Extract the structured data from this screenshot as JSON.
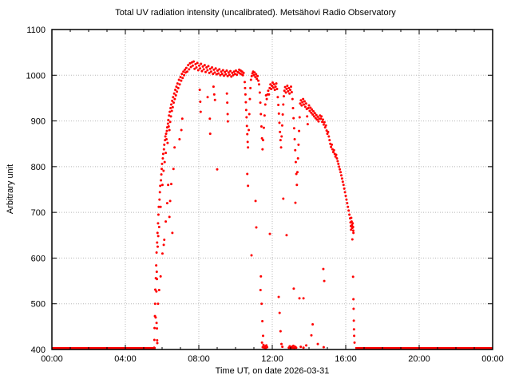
{
  "title": "Total UV radiation intensity (uncalibrated). Metsähovi Radio Observatory",
  "axes": {
    "x_label": "Time UT, on date 2026-03-31",
    "y_label": "Arbitrary unit"
  },
  "chart_data": {
    "type": "scatter",
    "title": "Total UV radiation intensity (uncalibrated). Metsähovi Radio Observatory",
    "xlabel": "Time UT, on date 2026-03-31",
    "ylabel": "Arbitrary unit",
    "x_unit": "hours UT",
    "xlim": [
      0,
      24
    ],
    "ylim": [
      400,
      1100
    ],
    "x_major_ticks_hours": [
      0,
      4,
      8,
      12,
      16,
      20,
      24
    ],
    "x_tick_labels": [
      "00:00",
      "04:00",
      "08:00",
      "12:00",
      "16:00",
      "20:00",
      "00:00"
    ],
    "x_minor_tick_step_hours": 1,
    "y_ticks": [
      400,
      500,
      600,
      700,
      800,
      900,
      1000,
      1100
    ],
    "grid": "dotted at major ticks",
    "legend": "none",
    "point_color": "#ff0000",
    "grid_color": "#b8b8b8",
    "border_color": "#000000",
    "baseline_value": 400,
    "baseline_segments_hours": [
      [
        0.0,
        5.65
      ],
      [
        16.52,
        24.0
      ]
    ],
    "points": [
      [
        5.57,
        404
      ],
      [
        5.58,
        421
      ],
      [
        5.59,
        447
      ],
      [
        5.61,
        473
      ],
      [
        5.62,
        500
      ],
      [
        5.63,
        531
      ],
      [
        5.65,
        470
      ],
      [
        5.66,
        556
      ],
      [
        5.68,
        584
      ],
      [
        5.69,
        527
      ],
      [
        5.7,
        612
      ],
      [
        5.71,
        570
      ],
      [
        5.72,
        554
      ],
      [
        5.73,
        634
      ],
      [
        5.75,
        655
      ],
      [
        5.76,
        625
      ],
      [
        5.78,
        676
      ],
      [
        5.79,
        648
      ],
      [
        5.8,
        695
      ],
      [
        5.82,
        712
      ],
      [
        5.84,
        668
      ],
      [
        5.86,
        728
      ],
      [
        5.88,
        744
      ],
      [
        5.9,
        758
      ],
      [
        5.92,
        712
      ],
      [
        5.94,
        770
      ],
      [
        5.96,
        783
      ],
      [
        5.98,
        795
      ],
      [
        6.0,
        806
      ],
      [
        6.02,
        760
      ],
      [
        6.04,
        818
      ],
      [
        6.06,
        828
      ],
      [
        6.08,
        791
      ],
      [
        6.1,
        838
      ],
      [
        6.12,
        848
      ],
      [
        6.14,
        810
      ],
      [
        6.16,
        858
      ],
      [
        6.18,
        866
      ],
      [
        6.2,
        830
      ],
      [
        6.22,
        872
      ],
      [
        6.24,
        860
      ],
      [
        6.26,
        878
      ],
      [
        6.28,
        886
      ],
      [
        6.3,
        852
      ],
      [
        6.32,
        894
      ],
      [
        5.7,
        458
      ],
      [
        5.72,
        446
      ],
      [
        5.73,
        420
      ],
      [
        5.74,
        414
      ],
      [
        5.78,
        500
      ],
      [
        5.84,
        530
      ],
      [
        5.92,
        560
      ],
      [
        6.02,
        610
      ],
      [
        6.09,
        629
      ],
      [
        6.12,
        640
      ],
      [
        6.2,
        680
      ],
      [
        6.28,
        720
      ],
      [
        6.33,
        760
      ],
      [
        6.34,
        902
      ],
      [
        6.36,
        888
      ],
      [
        6.38,
        912
      ],
      [
        6.4,
        880
      ],
      [
        6.42,
        920
      ],
      [
        6.44,
        898
      ],
      [
        6.46,
        928
      ],
      [
        6.48,
        910
      ],
      [
        6.5,
        936
      ],
      [
        6.53,
        922
      ],
      [
        6.55,
        944
      ],
      [
        6.58,
        930
      ],
      [
        6.6,
        952
      ],
      [
        6.63,
        940
      ],
      [
        6.66,
        960
      ],
      [
        6.69,
        948
      ],
      [
        6.72,
        968
      ],
      [
        6.75,
        956
      ],
      [
        6.78,
        975
      ],
      [
        6.81,
        964
      ],
      [
        6.84,
        982
      ],
      [
        6.88,
        972
      ],
      [
        6.92,
        990
      ],
      [
        6.96,
        980
      ],
      [
        7.0,
        996
      ],
      [
        7.04,
        988
      ],
      [
        7.08,
        1003
      ],
      [
        7.12,
        994
      ],
      [
        7.16,
        1008
      ],
      [
        7.2,
        1000
      ],
      [
        7.24,
        1012
      ],
      [
        7.28,
        1006
      ],
      [
        6.4,
        690
      ],
      [
        6.44,
        725
      ],
      [
        6.5,
        762
      ],
      [
        6.56,
        655
      ],
      [
        6.62,
        795
      ],
      [
        6.68,
        842
      ],
      [
        6.95,
        860
      ],
      [
        7.05,
        880
      ],
      [
        7.1,
        905
      ],
      [
        7.32,
        1016
      ],
      [
        7.37,
        1008
      ],
      [
        7.42,
        1022
      ],
      [
        7.47,
        1013
      ],
      [
        7.52,
        1026
      ],
      [
        7.57,
        1018
      ],
      [
        7.62,
        1028
      ],
      [
        7.67,
        1021
      ],
      [
        7.72,
        1030
      ],
      [
        7.77,
        1014
      ],
      [
        7.82,
        1024
      ],
      [
        7.87,
        1017
      ],
      [
        7.92,
        1027
      ],
      [
        7.97,
        1011
      ],
      [
        8.02,
        1021
      ],
      [
        8.07,
        1015
      ],
      [
        8.12,
        1025
      ],
      [
        8.17,
        1009
      ],
      [
        8.22,
        1019
      ],
      [
        8.27,
        1013
      ],
      [
        8.32,
        1022
      ],
      [
        8.37,
        1007
      ],
      [
        8.42,
        1017
      ],
      [
        8.47,
        1011
      ],
      [
        8.52,
        1020
      ],
      [
        8.57,
        1005
      ],
      [
        8.62,
        1014
      ],
      [
        8.67,
        1008
      ],
      [
        8.72,
        1017
      ],
      [
        8.77,
        1003
      ],
      [
        8.82,
        1012
      ],
      [
        8.87,
        1006
      ],
      [
        8.92,
        1015
      ],
      [
        8.97,
        1002
      ],
      [
        9.02,
        1010
      ],
      [
        9.07,
        1004
      ],
      [
        9.12,
        1013
      ],
      [
        9.17,
        1000
      ],
      [
        9.22,
        1008
      ],
      [
        9.27,
        1003
      ],
      [
        9.32,
        1011
      ],
      [
        9.37,
        999
      ],
      [
        9.42,
        1007
      ],
      [
        9.47,
        1002
      ],
      [
        9.52,
        1010
      ],
      [
        9.57,
        998
      ],
      [
        9.62,
        1006
      ],
      [
        9.67,
        1001
      ],
      [
        9.72,
        1009
      ],
      [
        9.77,
        997
      ],
      [
        9.82,
        1005
      ],
      [
        9.87,
        1000
      ],
      [
        9.92,
        1008
      ],
      [
        9.97,
        1003
      ],
      [
        10.02,
        1010
      ],
      [
        10.07,
        1001
      ],
      [
        10.12,
        1007
      ],
      [
        8.05,
        968
      ],
      [
        8.08,
        942
      ],
      [
        8.1,
        920
      ],
      [
        8.48,
        952
      ],
      [
        8.6,
        905
      ],
      [
        8.62,
        872
      ],
      [
        8.8,
        975
      ],
      [
        8.84,
        958
      ],
      [
        8.88,
        946
      ],
      [
        9.0,
        794
      ],
      [
        9.53,
        960
      ],
      [
        9.55,
        940
      ],
      [
        9.57,
        915
      ],
      [
        9.58,
        899
      ],
      [
        10.16,
        1006
      ],
      [
        10.2,
        1012
      ],
      [
        10.24,
        1004
      ],
      [
        10.28,
        1010
      ],
      [
        10.32,
        1002
      ],
      [
        10.36,
        1008
      ],
      [
        10.4,
        1000
      ],
      [
        10.44,
        1005
      ],
      [
        10.5,
        985
      ],
      [
        10.52,
        972
      ],
      [
        10.54,
        958
      ],
      [
        10.56,
        941
      ],
      [
        10.58,
        924
      ],
      [
        10.6,
        908
      ],
      [
        10.62,
        889
      ],
      [
        10.64,
        871
      ],
      [
        10.66,
        854
      ],
      [
        10.68,
        842
      ],
      [
        10.72,
        880
      ],
      [
        10.75,
        915
      ],
      [
        10.78,
        948
      ],
      [
        10.81,
        972
      ],
      [
        10.84,
        990
      ],
      [
        10.88,
        998
      ],
      [
        10.92,
        1004
      ],
      [
        10.96,
        1008
      ],
      [
        11.0,
        1000
      ],
      [
        11.04,
        1006
      ],
      [
        11.08,
        996
      ],
      [
        11.12,
        1002
      ],
      [
        11.16,
        992
      ],
      [
        11.2,
        998
      ],
      [
        11.24,
        988
      ],
      [
        11.28,
        980
      ],
      [
        10.64,
        784
      ],
      [
        10.68,
        758
      ],
      [
        10.87,
        606
      ],
      [
        11.09,
        725
      ],
      [
        11.13,
        667
      ],
      [
        11.32,
        962
      ],
      [
        11.35,
        940
      ],
      [
        11.38,
        915
      ],
      [
        11.41,
        888
      ],
      [
        11.44,
        862
      ],
      [
        11.47,
        838
      ],
      [
        11.5,
        858
      ],
      [
        11.54,
        885
      ],
      [
        11.58,
        912
      ],
      [
        11.62,
        936
      ],
      [
        11.66,
        956
      ],
      [
        11.7,
        948
      ],
      [
        11.74,
        958
      ],
      [
        11.78,
        966
      ],
      [
        11.82,
        958
      ],
      [
        11.36,
        530
      ],
      [
        11.38,
        560
      ],
      [
        11.42,
        500
      ],
      [
        11.46,
        462
      ],
      [
        11.5,
        430
      ],
      [
        11.44,
        415
      ],
      [
        11.48,
        405
      ],
      [
        11.52,
        410
      ],
      [
        11.56,
        404
      ],
      [
        11.6,
        407
      ],
      [
        11.64,
        403
      ],
      [
        11.68,
        409
      ],
      [
        11.72,
        405
      ],
      [
        11.87,
        653
      ],
      [
        11.86,
        972
      ],
      [
        11.9,
        980
      ],
      [
        11.94,
        970
      ],
      [
        11.98,
        977
      ],
      [
        12.02,
        984
      ],
      [
        12.06,
        973
      ],
      [
        12.1,
        980
      ],
      [
        12.14,
        968
      ],
      [
        12.18,
        975
      ],
      [
        12.22,
        982
      ],
      [
        12.26,
        970
      ],
      [
        12.3,
        952
      ],
      [
        12.33,
        935
      ],
      [
        12.36,
        916
      ],
      [
        12.39,
        896
      ],
      [
        12.42,
        876
      ],
      [
        12.45,
        858
      ],
      [
        12.48,
        842
      ],
      [
        12.51,
        866
      ],
      [
        12.54,
        890
      ],
      [
        12.57,
        914
      ],
      [
        12.6,
        936
      ],
      [
        12.63,
        954
      ],
      [
        12.35,
        515
      ],
      [
        12.4,
        480
      ],
      [
        12.45,
        440
      ],
      [
        12.5,
        412
      ],
      [
        12.55,
        406
      ],
      [
        12.6,
        730
      ],
      [
        12.78,
        650
      ],
      [
        12.66,
        966
      ],
      [
        12.7,
        974
      ],
      [
        12.74,
        962
      ],
      [
        12.78,
        970
      ],
      [
        12.82,
        977
      ],
      [
        12.86,
        965
      ],
      [
        12.9,
        972
      ],
      [
        12.94,
        960
      ],
      [
        12.98,
        968
      ],
      [
        13.02,
        975
      ],
      [
        13.06,
        963
      ],
      [
        13.1,
        948
      ],
      [
        13.13,
        928
      ],
      [
        13.16,
        906
      ],
      [
        13.19,
        884
      ],
      [
        13.22,
        860
      ],
      [
        13.25,
        836
      ],
      [
        13.28,
        810
      ],
      [
        13.31,
        784
      ],
      [
        13.34,
        760
      ],
      [
        13.37,
        788
      ],
      [
        13.4,
        818
      ],
      [
        13.43,
        848
      ],
      [
        13.46,
        878
      ],
      [
        13.49,
        908
      ],
      [
        13.17,
        533
      ],
      [
        13.26,
        721
      ],
      [
        13.48,
        512
      ],
      [
        13.7,
        512
      ],
      [
        12.9,
        404
      ],
      [
        12.95,
        407
      ],
      [
        13.0,
        403
      ],
      [
        13.05,
        406
      ],
      [
        13.1,
        404
      ],
      [
        13.15,
        408
      ],
      [
        13.2,
        403
      ],
      [
        13.25,
        406
      ],
      [
        13.3,
        404
      ],
      [
        13.55,
        406
      ],
      [
        13.7,
        404
      ],
      [
        13.85,
        409
      ],
      [
        14.13,
        431
      ],
      [
        14.2,
        455
      ],
      [
        14.48,
        412
      ],
      [
        14.8,
        405
      ],
      [
        13.52,
        938
      ],
      [
        13.56,
        945
      ],
      [
        13.6,
        934
      ],
      [
        13.64,
        941
      ],
      [
        13.68,
        948
      ],
      [
        13.72,
        936
      ],
      [
        13.76,
        943
      ],
      [
        13.8,
        931
      ],
      [
        13.84,
        938
      ],
      [
        13.88,
        926
      ],
      [
        13.9,
        910
      ],
      [
        13.93,
        893
      ],
      [
        13.96,
        928
      ],
      [
        14.0,
        934
      ],
      [
        14.04,
        922
      ],
      [
        14.08,
        929
      ],
      [
        14.12,
        918
      ],
      [
        14.16,
        925
      ],
      [
        14.2,
        914
      ],
      [
        14.24,
        921
      ],
      [
        14.28,
        910
      ],
      [
        14.32,
        917
      ],
      [
        14.36,
        906
      ],
      [
        14.4,
        913
      ],
      [
        14.44,
        903
      ],
      [
        14.48,
        909
      ],
      [
        14.52,
        899
      ],
      [
        14.56,
        905
      ],
      [
        14.78,
        576
      ],
      [
        14.83,
        550
      ],
      [
        14.6,
        912
      ],
      [
        14.64,
        905
      ],
      [
        14.68,
        910
      ],
      [
        14.72,
        898
      ],
      [
        14.76,
        903
      ],
      [
        14.8,
        892
      ],
      [
        14.84,
        897
      ],
      [
        14.88,
        886
      ],
      [
        14.92,
        890
      ],
      [
        14.96,
        879
      ],
      [
        15.0,
        872
      ],
      [
        15.04,
        876
      ],
      [
        15.08,
        866
      ],
      [
        15.12,
        858
      ],
      [
        15.16,
        850
      ],
      [
        15.2,
        843
      ],
      [
        15.24,
        848
      ],
      [
        15.28,
        838
      ],
      [
        15.32,
        832
      ],
      [
        15.36,
        836
      ],
      [
        15.4,
        828
      ],
      [
        15.44,
        822
      ],
      [
        15.48,
        826
      ],
      [
        15.52,
        818
      ],
      [
        15.56,
        812
      ],
      [
        15.6,
        806
      ],
      [
        15.64,
        800
      ],
      [
        15.68,
        794
      ],
      [
        15.72,
        788
      ],
      [
        15.76,
        781
      ],
      [
        15.8,
        774
      ],
      [
        15.84,
        767
      ],
      [
        15.88,
        760
      ],
      [
        15.92,
        752
      ],
      [
        15.96,
        744
      ],
      [
        16.0,
        736
      ],
      [
        16.04,
        728
      ],
      [
        16.08,
        720
      ],
      [
        16.12,
        712
      ],
      [
        16.16,
        704
      ],
      [
        16.2,
        695
      ],
      [
        16.24,
        687
      ],
      [
        16.26,
        678
      ],
      [
        16.28,
        670
      ],
      [
        16.29,
        662
      ],
      [
        16.3,
        688
      ],
      [
        16.32,
        680
      ],
      [
        16.34,
        672
      ],
      [
        16.36,
        666
      ],
      [
        16.38,
        676
      ],
      [
        16.4,
        668
      ],
      [
        16.41,
        660
      ],
      [
        16.42,
        655
      ],
      [
        16.36,
        641
      ],
      [
        16.4,
        559
      ],
      [
        16.42,
        510
      ],
      [
        16.43,
        489
      ],
      [
        16.44,
        463
      ],
      [
        16.45,
        444
      ],
      [
        16.46,
        430
      ],
      [
        16.48,
        415
      ]
    ]
  }
}
